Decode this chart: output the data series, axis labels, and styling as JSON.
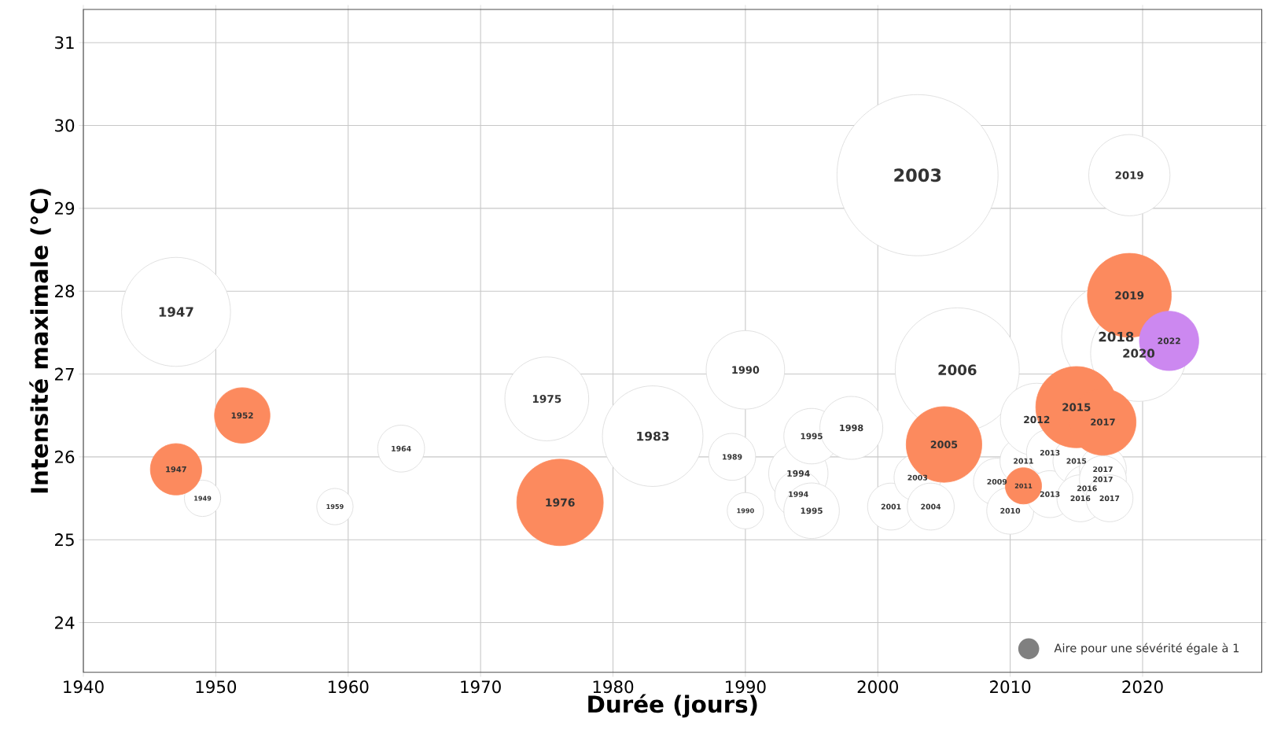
{
  "chart_data": {
    "type": "bubble",
    "xlabel": "Durée (jours)",
    "ylabel": "Intensité maximale (°C)",
    "xlim": [
      1940,
      2029
    ],
    "ylim": [
      23.4,
      31.4
    ],
    "xticks": [
      1940,
      1950,
      1960,
      1970,
      1980,
      1990,
      2000,
      2010,
      2020
    ],
    "yticks": [
      24,
      25,
      26,
      27,
      28,
      29,
      30,
      31
    ],
    "grid": true,
    "size_legend": [
      {
        "value": 1,
        "label": "Aire pour une sévérité égale à 1"
      }
    ],
    "series": [
      {
        "color": "#ffffff",
        "x": [
          1947,
          1949,
          1959,
          1964,
          1975,
          1983,
          1989,
          1990,
          1990,
          1994,
          1994,
          1995,
          1995,
          1998,
          2001,
          2003,
          2003,
          2004,
          2006,
          2009,
          2010,
          2011,
          2012,
          2013,
          2013,
          2015,
          2015.8,
          2015.3,
          2017,
          2017,
          2017.5,
          2018,
          2019,
          2019.7
        ],
        "values": [
          27.75,
          25.5,
          25.4,
          26.1,
          26.7,
          26.25,
          26.0,
          27.05,
          25.35,
          25.8,
          25.55,
          26.25,
          25.35,
          26.35,
          25.4,
          29.4,
          25.75,
          25.4,
          27.05,
          25.7,
          25.35,
          25.95,
          26.45,
          26.05,
          25.55,
          25.95,
          25.62,
          25.5,
          25.85,
          25.73,
          25.5,
          27.45,
          29.4,
          27.25
        ],
        "sizes": [
          27,
          3,
          3,
          5,
          16,
          23,
          5,
          14,
          3,
          8,
          5,
          7,
          7,
          9,
          5,
          59,
          5,
          5,
          35,
          5,
          5,
          5,
          12,
          5,
          5,
          5,
          5,
          5,
          5,
          5,
          5,
          27,
          15,
          21
        ]
      },
      {
        "color": "#fc8a5e",
        "x": [
          1947,
          1952,
          1976,
          2005,
          2011,
          2015,
          2017,
          2019
        ],
        "values": [
          25.85,
          26.5,
          25.45,
          26.15,
          25.65,
          26.6,
          26.42,
          27.95
        ],
        "sizes": [
          6,
          7,
          17,
          13,
          3,
          15,
          10,
          16
        ]
      },
      {
        "color": "#cc88f0",
        "x": [
          2022
        ],
        "values": [
          27.4
        ],
        "sizes": [
          8
        ]
      }
    ],
    "annotations": [
      {
        "text": "1947",
        "x": 1947,
        "y": 27.75
      },
      {
        "text": "1949",
        "x": 1949,
        "y": 25.5
      },
      {
        "text": "1959",
        "x": 1959,
        "y": 25.4
      },
      {
        "text": "1964",
        "x": 1964,
        "y": 26.1
      },
      {
        "text": "1975",
        "x": 1975,
        "y": 26.7
      },
      {
        "text": "1983",
        "x": 1983,
        "y": 26.25
      },
      {
        "text": "1989",
        "x": 1989,
        "y": 26.0
      },
      {
        "text": "1990",
        "x": 1990,
        "y": 27.05
      },
      {
        "text": "1990",
        "x": 1990,
        "y": 25.35
      },
      {
        "text": "1994",
        "x": 1994,
        "y": 25.8
      },
      {
        "text": "1994",
        "x": 1994,
        "y": 25.55
      },
      {
        "text": "1995",
        "x": 1995,
        "y": 26.25
      },
      {
        "text": "1995",
        "x": 1995,
        "y": 25.35
      },
      {
        "text": "1998",
        "x": 1998,
        "y": 26.35
      },
      {
        "text": "2001",
        "x": 2001,
        "y": 25.4
      },
      {
        "text": "2003",
        "x": 2003,
        "y": 29.4
      },
      {
        "text": "2003",
        "x": 2003,
        "y": 25.75
      },
      {
        "text": "2004",
        "x": 2004,
        "y": 25.4
      },
      {
        "text": "2006",
        "x": 2006,
        "y": 27.05
      },
      {
        "text": "2009",
        "x": 2009,
        "y": 25.7
      },
      {
        "text": "2010",
        "x": 2010,
        "y": 25.35
      },
      {
        "text": "2011",
        "x": 2011,
        "y": 25.95
      },
      {
        "text": "2012",
        "x": 2012,
        "y": 26.45
      },
      {
        "text": "2013",
        "x": 2013,
        "y": 26.05
      },
      {
        "text": "2013",
        "x": 2013,
        "y": 25.55
      },
      {
        "text": "2015",
        "x": 2015,
        "y": 25.95
      },
      {
        "text": "2016",
        "x": 2015.8,
        "y": 25.62
      },
      {
        "text": "2016",
        "x": 2015.3,
        "y": 25.5
      },
      {
        "text": "2017",
        "x": 2017,
        "y": 25.85
      },
      {
        "text": "2017",
        "x": 2017,
        "y": 25.73
      },
      {
        "text": "2017",
        "x": 2017.5,
        "y": 25.5
      },
      {
        "text": "2018",
        "x": 2018,
        "y": 27.45
      },
      {
        "text": "2019",
        "x": 2019,
        "y": 29.4
      },
      {
        "text": "2020",
        "x": 2019.7,
        "y": 27.25
      },
      {
        "text": "1947",
        "x": 1947,
        "y": 25.85
      },
      {
        "text": "1952",
        "x": 1952,
        "y": 26.5
      },
      {
        "text": "1976",
        "x": 1976,
        "y": 25.45
      },
      {
        "text": "2005",
        "x": 2005,
        "y": 26.15
      },
      {
        "text": "2011",
        "x": 2011,
        "y": 25.65
      },
      {
        "text": "2015",
        "x": 2015,
        "y": 26.6
      },
      {
        "text": "2017",
        "x": 2017,
        "y": 26.42
      },
      {
        "text": "2019",
        "x": 2019,
        "y": 27.95
      },
      {
        "text": "2022",
        "x": 2022,
        "y": 27.4
      }
    ]
  }
}
